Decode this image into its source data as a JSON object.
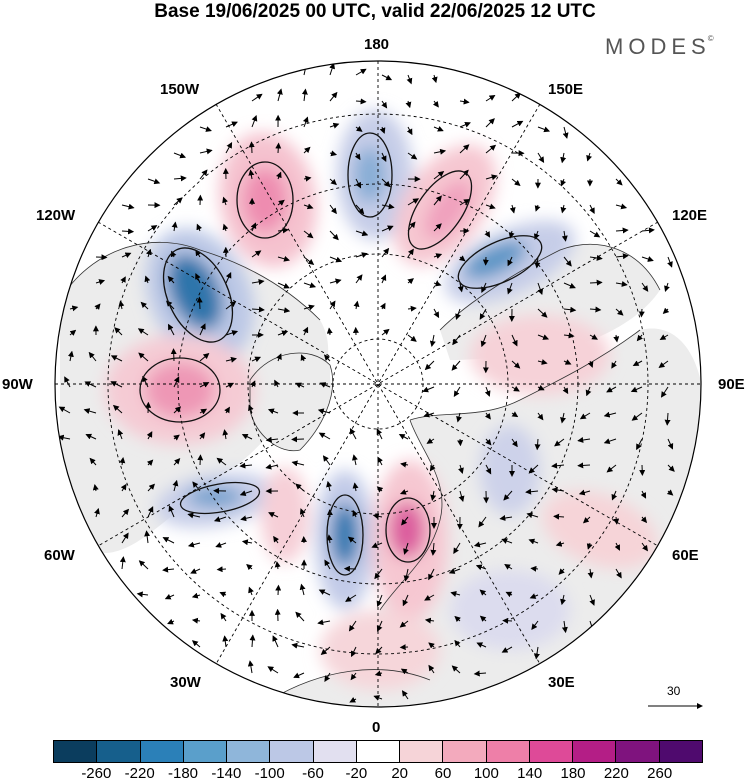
{
  "title": "Base 19/06/2025 00 UTC, valid 22/06/2025 12 UTC",
  "brand": "MODES",
  "brand_mark": "©",
  "lon_labels": {
    "top": "180",
    "bottom": "0",
    "left": "90W",
    "right": "90E",
    "upper_left_1": "150W",
    "upper_left_2": "120W",
    "upper_right_1": "150E",
    "upper_right_2": "120E",
    "lower_left_1": "60W",
    "lower_left_2": "30W",
    "lower_right_1": "60E",
    "lower_right_2": "30E"
  },
  "reference_vector": "30",
  "colorbar": {
    "ticks": [
      "-260",
      "-220",
      "-180",
      "-140",
      "-100",
      "-60",
      "-20",
      "20",
      "60",
      "100",
      "140",
      "180",
      "220",
      "260"
    ],
    "colors": [
      "#0b3d5e",
      "#165f8c",
      "#2b80b8",
      "#5a9fcb",
      "#8fb6da",
      "#bcc8e6",
      "#e2e0f0",
      "#ffffff",
      "#f6d4d8",
      "#f3aabd",
      "#ee7fa8",
      "#de4a98",
      "#b41e86",
      "#7f137e",
      "#4f0a6e"
    ]
  },
  "anomaly_patterns": [
    {
      "sign": "positive",
      "color": "#f07fa7"
    },
    {
      "sign": "negative",
      "color": "#4f95c4"
    }
  ]
}
